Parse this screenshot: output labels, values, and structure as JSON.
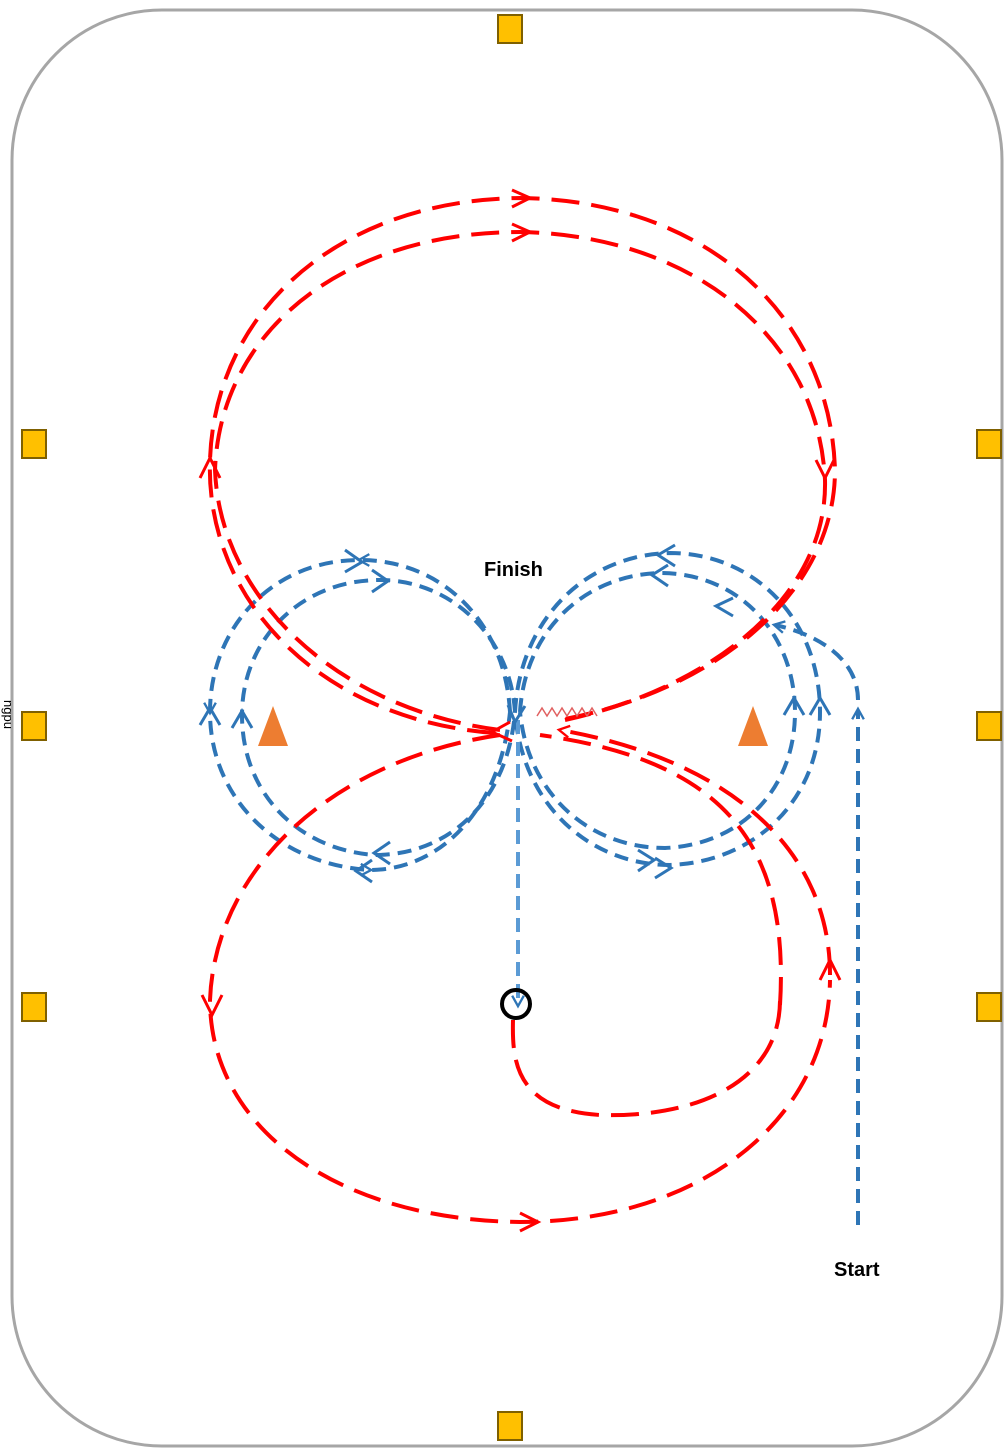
{
  "labels": {
    "finish": "Finish",
    "start": "Start",
    "edge_text": "ngpu"
  },
  "colors": {
    "arena_border": "#a6a6a6",
    "marker_fill": "#ffc000",
    "marker_border": "#7f6000",
    "red_path": "#ff0000",
    "blue_path": "#2e75b6",
    "cone": "#ed7d31",
    "halt_circle": "#000000"
  },
  "icons": {
    "letter_marker": "square-marker-icon",
    "cone": "cone-icon",
    "halt_point": "circle-icon",
    "transition": "zigzag-icon"
  }
}
